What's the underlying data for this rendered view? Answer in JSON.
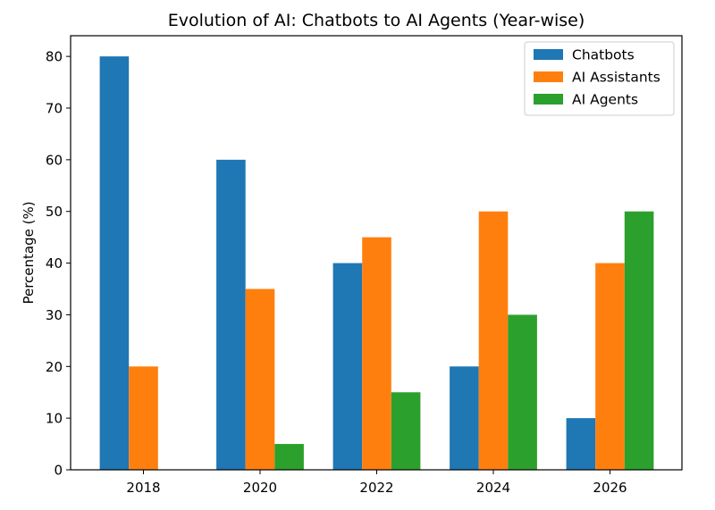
{
  "chart_data": {
    "type": "bar",
    "title": "Evolution of AI: Chatbots to AI Agents (Year-wise)",
    "xlabel": "",
    "ylabel": "Percentage (%)",
    "categories": [
      "2018",
      "2020",
      "2022",
      "2024",
      "2026"
    ],
    "series": [
      {
        "name": "Chatbots",
        "color": "#1f77b4",
        "values": [
          80,
          60,
          40,
          20,
          10
        ]
      },
      {
        "name": "AI Assistants",
        "color": "#ff7f0e",
        "values": [
          20,
          35,
          45,
          50,
          40
        ]
      },
      {
        "name": "AI Agents",
        "color": "#2ca02c",
        "values": [
          0,
          5,
          15,
          30,
          50
        ]
      }
    ],
    "ylim": [
      0,
      84
    ],
    "yticks": [
      0,
      10,
      20,
      30,
      40,
      50,
      60,
      70,
      80
    ],
    "grid": false,
    "legend_position": "top-right"
  }
}
